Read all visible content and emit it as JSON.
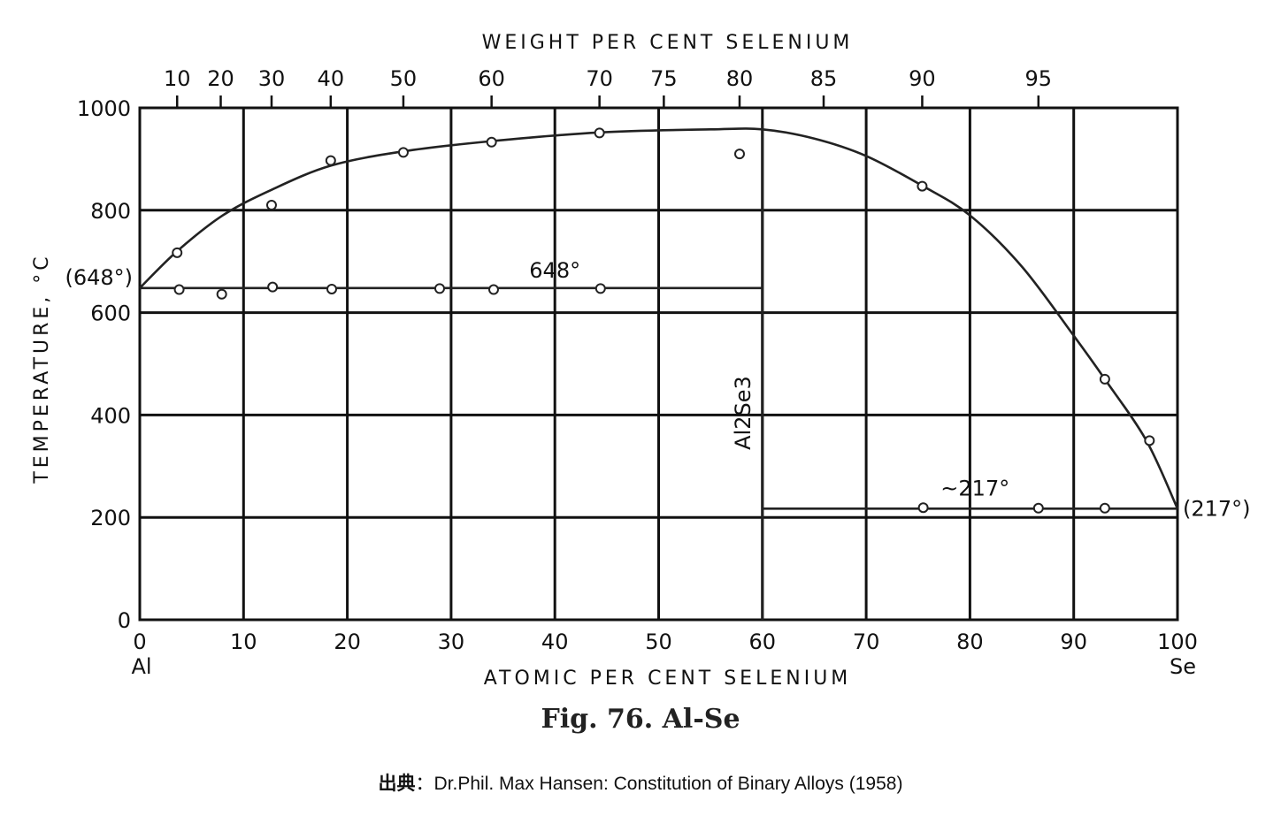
{
  "chart_data": {
    "type": "line",
    "top_axis_title": "WEIGHT PER CENT SELENIUM",
    "xlabel": "ATOMIC PER CENT SELENIUM",
    "ylabel": "TEMPERATURE, °C",
    "xlim": [
      0,
      100
    ],
    "ylim": [
      0,
      1000
    ],
    "grid": true,
    "x_ticks": [
      "0",
      "10",
      "20",
      "30",
      "40",
      "50",
      "60",
      "70",
      "80",
      "90",
      "100"
    ],
    "y_ticks": [
      "0",
      "200",
      "400",
      "600",
      "800",
      "1000"
    ],
    "top_ticks": [
      {
        "label": "10",
        "x": 3.6
      },
      {
        "label": "20",
        "x": 7.8
      },
      {
        "label": "30",
        "x": 12.7
      },
      {
        "label": "40",
        "x": 18.4
      },
      {
        "label": "50",
        "x": 25.4
      },
      {
        "label": "60",
        "x": 33.9
      },
      {
        "label": "70",
        "x": 44.3
      },
      {
        "label": "75",
        "x": 50.5
      },
      {
        "label": "80",
        "x": 57.8
      },
      {
        "label": "85",
        "x": 65.9
      },
      {
        "label": "90",
        "x": 75.4
      },
      {
        "label": "95",
        "x": 86.6
      }
    ],
    "end_labels": {
      "left": "Al",
      "right": "Se"
    },
    "liquidus": [
      {
        "x": 0,
        "y": 648
      },
      {
        "x": 3.6,
        "y": 720
      },
      {
        "x": 8,
        "y": 790
      },
      {
        "x": 12.7,
        "y": 840
      },
      {
        "x": 18.4,
        "y": 887
      },
      {
        "x": 25.4,
        "y": 915
      },
      {
        "x": 33.9,
        "y": 935
      },
      {
        "x": 44.3,
        "y": 952
      },
      {
        "x": 55,
        "y": 958
      },
      {
        "x": 60,
        "y": 958
      },
      {
        "x": 65,
        "y": 940
      },
      {
        "x": 70,
        "y": 906
      },
      {
        "x": 75.4,
        "y": 848
      },
      {
        "x": 80,
        "y": 790
      },
      {
        "x": 85,
        "y": 690
      },
      {
        "x": 90,
        "y": 555
      },
      {
        "x": 93,
        "y": 470
      },
      {
        "x": 97,
        "y": 350
      },
      {
        "x": 100,
        "y": 217
      }
    ],
    "points": [
      {
        "x": 3.6,
        "y": 717
      },
      {
        "x": 12.7,
        "y": 810
      },
      {
        "x": 18.4,
        "y": 897
      },
      {
        "x": 25.4,
        "y": 913
      },
      {
        "x": 33.9,
        "y": 933
      },
      {
        "x": 44.3,
        "y": 951
      },
      {
        "x": 57.8,
        "y": 910
      },
      {
        "x": 75.4,
        "y": 847
      },
      {
        "x": 93,
        "y": 470
      },
      {
        "x": 97.3,
        "y": 350
      },
      {
        "x": 3.8,
        "y": 645
      },
      {
        "x": 7.9,
        "y": 636
      },
      {
        "x": 12.8,
        "y": 650
      },
      {
        "x": 18.5,
        "y": 646
      },
      {
        "x": 28.9,
        "y": 647
      },
      {
        "x": 34.1,
        "y": 645
      },
      {
        "x": 44.4,
        "y": 647
      },
      {
        "x": 75.5,
        "y": 219
      },
      {
        "x": 86.6,
        "y": 218
      },
      {
        "x": 93,
        "y": 218
      }
    ],
    "horizontal_lines": [
      {
        "y": 648,
        "x_from": 0,
        "x_to": 60,
        "label": "648°"
      },
      {
        "y": 217,
        "x_from": 60,
        "x_to": 100,
        "label": "~217°"
      }
    ],
    "compound_line": {
      "x": 60,
      "y_from": 0,
      "y_to": 958,
      "label": "Al2Se3"
    },
    "annotations": [
      {
        "text": "(648°)",
        "at": "left",
        "y": 648
      },
      {
        "text": "(217°)",
        "at": "right",
        "y": 217
      }
    ]
  },
  "figure_caption": "Fig. 76. Al-Se",
  "source": {
    "label": "出典",
    "separator": "：",
    "text": "Dr.Phil. Max Hansen: Constitution of Binary Alloys (1958)"
  }
}
